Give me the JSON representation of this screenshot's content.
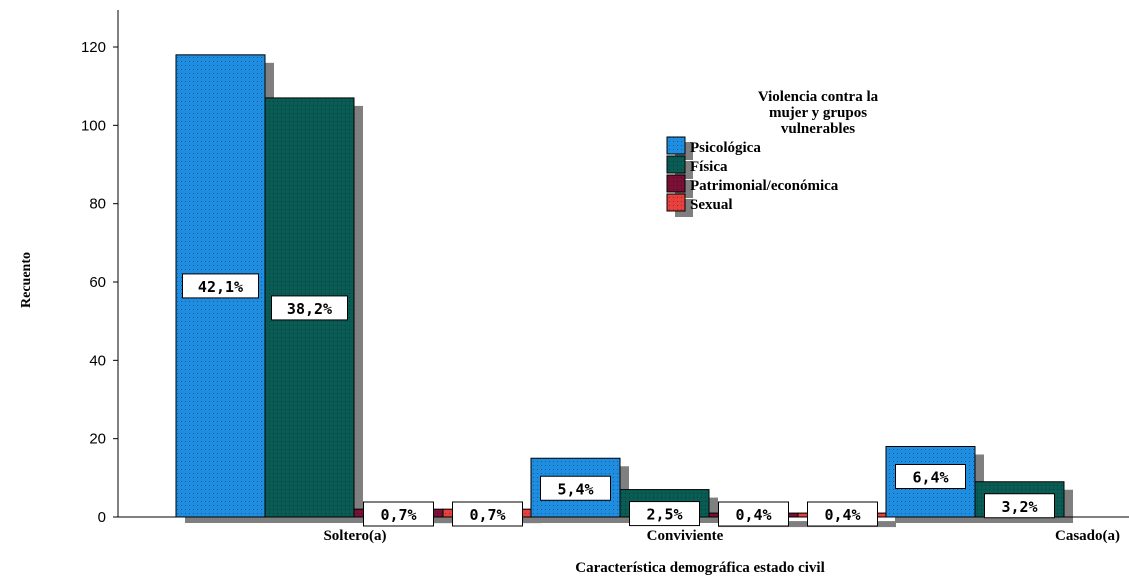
{
  "chart_data": {
    "type": "bar",
    "title": "",
    "xlabel": "Característica demográfica estado civil",
    "ylabel": "Recuento",
    "ylim": [
      0,
      127
    ],
    "yticks": [
      0,
      20,
      40,
      60,
      80,
      100,
      120
    ],
    "grid": false,
    "legend_placement": "top-right",
    "legend_title": "Violencia contra la mujer y grupos vulnerables",
    "categories": [
      "Soltero(a)",
      "Conviviente",
      "Casado(a)"
    ],
    "series": [
      {
        "name": "Psicológica",
        "color": "#1f8ee0",
        "values": [
          118,
          15,
          18
        ],
        "labels": [
          "42,1%",
          "5,4%",
          "6,4%"
        ]
      },
      {
        "name": "Física",
        "color": "#0b5b55",
        "values": [
          107,
          7,
          9
        ],
        "labels": [
          "38,2%",
          "2,5%",
          "3,2%"
        ]
      },
      {
        "name": "Patrimonial/económica",
        "color": "#7a1035",
        "values": [
          2,
          1,
          0
        ],
        "labels": [
          "0,7%",
          "0,4%",
          ""
        ]
      },
      {
        "name": "Sexual",
        "color": "#e8403d",
        "values": [
          2,
          1,
          0
        ],
        "labels": [
          "0,7%",
          "0,4%",
          ""
        ]
      }
    ]
  }
}
